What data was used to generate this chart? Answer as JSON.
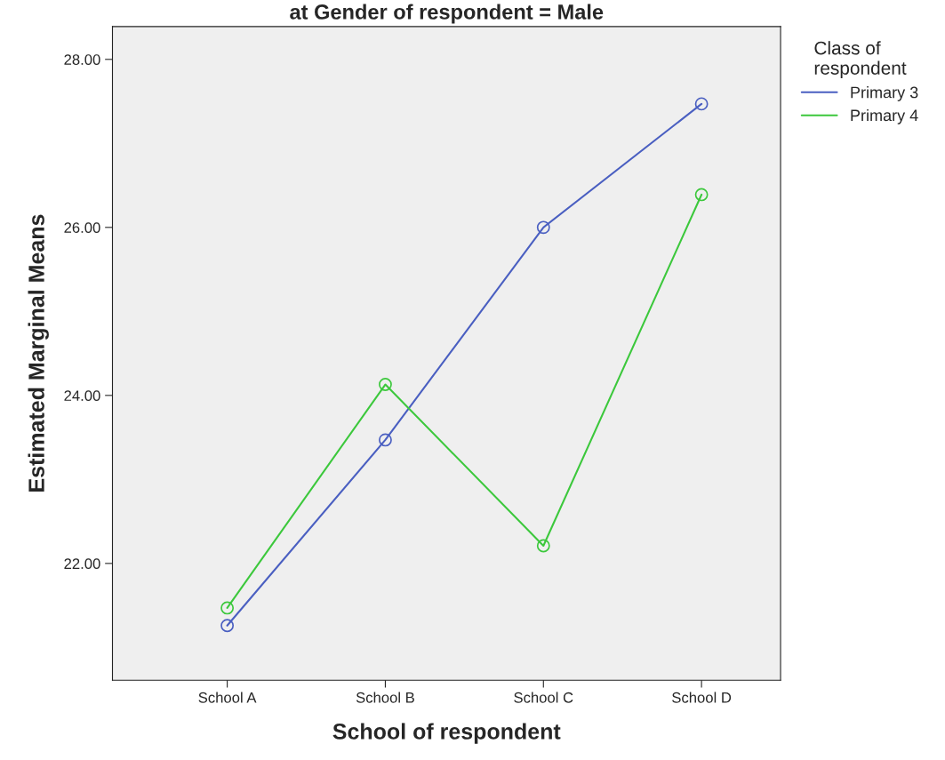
{
  "chart_data": {
    "type": "line",
    "title": "at Gender of respondent = Male",
    "xlabel": "School of respondent",
    "ylabel": "Estimated Marginal Means",
    "legend_title": "Class of\nrespondent",
    "categories": [
      "School A",
      "School B",
      "School C",
      "School D"
    ],
    "series": [
      {
        "name": "Primary 3",
        "color": "#4a5fc1",
        "values": [
          21.26,
          23.47,
          26.0,
          27.47
        ]
      },
      {
        "name": "Primary 4",
        "color": "#3cc83c",
        "values": [
          21.47,
          24.13,
          22.21,
          26.39
        ]
      }
    ],
    "ylim": [
      20.61,
      28.39
    ],
    "yticks": [
      {
        "value": 22,
        "label": "22.00"
      },
      {
        "value": 24,
        "label": "24.00"
      },
      {
        "value": 26,
        "label": "26.00"
      },
      {
        "value": 28,
        "label": "28.00"
      }
    ],
    "marker": "circle",
    "line_style": "solid",
    "grid": false,
    "legend": "right"
  }
}
